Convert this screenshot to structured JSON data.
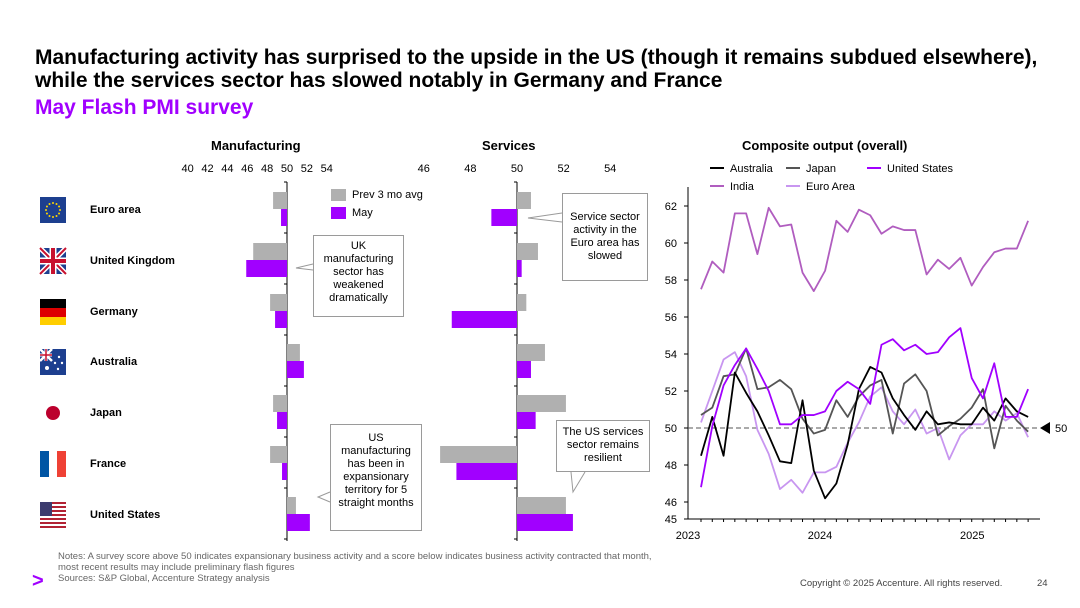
{
  "slide": {
    "title": "Manufacturing activity has surprised to the upside in the US (though it remains subdued elsewhere), while the services sector has slowed notably in Germany and France",
    "subtitle": "May Flash PMI survey",
    "notes_line1": "Notes: A survey score above 50 indicates expansionary business activity and a score below indicates business activity contracted that month,",
    "notes_line2": "most recent results may include preliminary flash figures",
    "sources": "Sources: S&P Global, Accenture Strategy analysis",
    "copyright": "Copyright © 2025 Accenture. All rights reserved.",
    "page_number": "24",
    "logo_glyph": ">"
  },
  "countries": [
    {
      "name": "Euro area",
      "flag": "eu-flag-icon"
    },
    {
      "name": "United Kingdom",
      "flag": "uk-flag-icon"
    },
    {
      "name": "Germany",
      "flag": "germany-flag-icon"
    },
    {
      "name": "Australia",
      "flag": "australia-flag-icon"
    },
    {
      "name": "Japan",
      "flag": "japan-flag-icon"
    },
    {
      "name": "France",
      "flag": "france-flag-icon"
    },
    {
      "name": "United States",
      "flag": "usa-flag-icon"
    }
  ],
  "colors": {
    "prev": "#b0b0b0",
    "may": "#a100ff",
    "australia": "#000000",
    "japan": "#555555",
    "united_states": "#a100ff",
    "india": "#b05dbf",
    "euro_area": "#c896f0",
    "reference": "#555555"
  },
  "callouts": {
    "uk": "UK manufacturing sector has weakened dramatically",
    "us": "US manufacturing has been in expansionary territory for 5 straight months",
    "euro": "Service sector activity in the Euro area has slowed",
    "us_services": "The US services sector remains resilient"
  },
  "chart_data": [
    {
      "type": "bar",
      "title": "Manufacturing",
      "orientation": "horizontal",
      "baseline": 50,
      "xlim": [
        40,
        54
      ],
      "ticks": [
        "40",
        "42",
        "44",
        "46",
        "48",
        "50",
        "52",
        "54"
      ],
      "categories": [
        "Euro area",
        "United Kingdom",
        "Germany",
        "Australia",
        "Japan",
        "France",
        "United States"
      ],
      "series": [
        {
          "name": "Prev 3 mo avg",
          "values": [
            48.6,
            46.6,
            48.3,
            51.3,
            48.6,
            48.3,
            50.9
          ]
        },
        {
          "name": "May",
          "values": [
            49.4,
            45.9,
            48.8,
            51.7,
            49.0,
            49.5,
            52.3
          ]
        }
      ]
    },
    {
      "type": "bar",
      "title": "Services",
      "orientation": "horizontal",
      "baseline": 50,
      "xlim": [
        46,
        54
      ],
      "ticks": [
        "46",
        "48",
        "50",
        "52",
        "54"
      ],
      "categories": [
        "Euro area",
        "United Kingdom",
        "Germany",
        "Australia",
        "Japan",
        "France",
        "United States"
      ],
      "series": [
        {
          "name": "Prev 3 mo avg",
          "values": [
            50.6,
            50.9,
            50.4,
            51.2,
            52.1,
            46.7,
            52.1
          ]
        },
        {
          "name": "May",
          "values": [
            48.9,
            50.2,
            47.2,
            50.6,
            50.8,
            47.4,
            52.4
          ]
        }
      ]
    },
    {
      "type": "line",
      "title": "Composite output (overall)",
      "ylim": [
        45,
        63
      ],
      "yticks": [
        "45",
        "46",
        "48",
        "50",
        "52",
        "54",
        "56",
        "58",
        "60",
        "62"
      ],
      "xticks": [
        "2023",
        "2024",
        "2025"
      ],
      "reference_label": "50",
      "reference_value": 50,
      "series": [
        {
          "name": "Australia",
          "values": [
            48.5,
            50.6,
            48.5,
            53.0,
            51.9,
            50.9,
            49.6,
            48.2,
            48.1,
            51.5,
            47.7,
            46.2,
            47.0,
            49.1,
            52.1,
            53.3,
            53.0,
            51.6,
            50.7,
            49.9,
            50.9,
            50.2,
            50.3,
            50.2,
            50.2,
            51.1,
            50.4,
            51.6,
            50.9,
            50.6
          ]
        },
        {
          "name": "Japan",
          "values": [
            50.7,
            51.1,
            52.8,
            52.9,
            54.3,
            52.1,
            52.2,
            52.6,
            52.1,
            50.5,
            49.7,
            49.9,
            51.5,
            50.6,
            51.7,
            52.3,
            52.6,
            49.7,
            52.4,
            52.9,
            52.0,
            49.6,
            50.1,
            50.5,
            51.1,
            52.1,
            48.9,
            51.2,
            50.4,
            49.8
          ]
        },
        {
          "name": "United States",
          "values": [
            46.8,
            50.1,
            52.3,
            53.4,
            54.3,
            53.2,
            52.0,
            50.2,
            50.2,
            50.7,
            50.7,
            50.9,
            52.0,
            52.5,
            52.1,
            51.3,
            54.5,
            54.8,
            54.2,
            54.5,
            54.0,
            54.1,
            54.9,
            55.4,
            52.7,
            51.6,
            53.5,
            50.6,
            50.6,
            52.1
          ]
        },
        {
          "name": "India",
          "values": [
            57.5,
            59.0,
            58.4,
            61.6,
            61.6,
            59.4,
            61.9,
            60.9,
            61.0,
            58.4,
            57.4,
            58.5,
            61.2,
            60.6,
            61.8,
            61.5,
            60.5,
            60.9,
            60.7,
            60.7,
            58.3,
            59.1,
            58.6,
            59.2,
            57.7,
            58.7,
            59.5,
            59.7,
            59.7,
            61.2
          ]
        },
        {
          "name": "Euro Area",
          "values": [
            50.3,
            52.0,
            53.7,
            54.1,
            52.8,
            49.9,
            48.6,
            46.7,
            47.2,
            46.5,
            47.6,
            47.6,
            47.9,
            49.2,
            50.3,
            51.7,
            52.2,
            50.9,
            50.2,
            51.0,
            49.7,
            50.0,
            48.3,
            49.6,
            50.2,
            50.2,
            50.9,
            50.4,
            50.8,
            49.5
          ]
        }
      ]
    }
  ]
}
